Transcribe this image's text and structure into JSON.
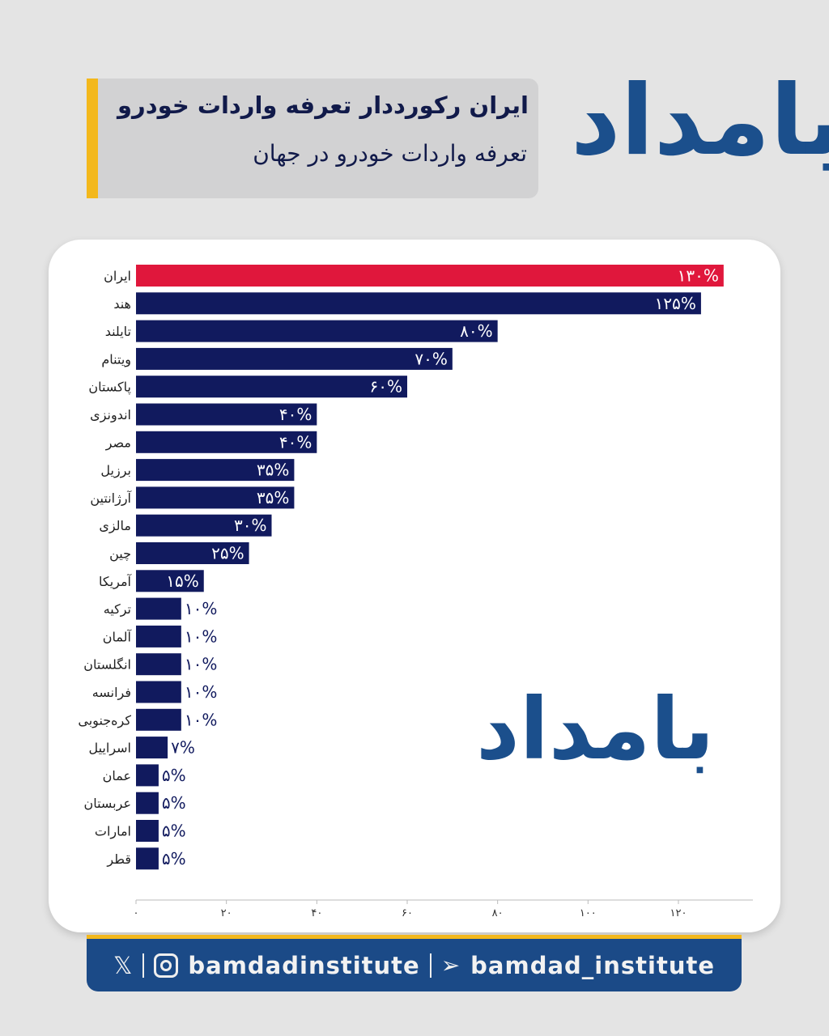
{
  "header": {
    "title": "ایران رکورددار تعرفه واردات خودرو",
    "subtitle": "تعرفه واردات خودرو در جهان"
  },
  "logo_text": "بامداد",
  "footer": {
    "handle_social": "bamdadinstitute",
    "handle_telegram": "bamdad_institute",
    "icons": [
      "x-icon",
      "instagram-icon",
      "telegram-icon"
    ]
  },
  "colors": {
    "highlight": "#e0173c",
    "bar": "#111a5e",
    "accent": "#f3b81c",
    "brand": "#1b4a87"
  },
  "chart_data": {
    "type": "bar",
    "orientation": "horizontal",
    "categories": [
      "ایران",
      "هند",
      "تایلند",
      "ویتنام",
      "پاکستان",
      "اندونزی",
      "مصر",
      "برزیل",
      "آرژانتین",
      "مالزی",
      "چین",
      "آمریکا",
      "ترکیه",
      "آلمان",
      "انگلستان",
      "فرانسه",
      "کره‌جنوبی",
      "اسراییل",
      "عمان",
      "عربستان",
      "امارات",
      "قطر"
    ],
    "values": [
      130,
      125,
      80,
      70,
      60,
      40,
      40,
      35,
      35,
      30,
      25,
      15,
      10,
      10,
      10,
      10,
      10,
      7,
      5,
      5,
      5,
      5
    ],
    "data_labels": [
      "۱۳۰%",
      "۱۲۵%",
      "۸۰%",
      "۷۰%",
      "۶۰%",
      "۴۰%",
      "۴۰%",
      "۳۵%",
      "۳۵%",
      "۳۰%",
      "۲۵%",
      "۱۵%",
      "۱۰%",
      "۱۰%",
      "۱۰%",
      "۱۰%",
      "۱۰%",
      "۷%",
      "۵%",
      "۵%",
      "۵%",
      "۵%"
    ],
    "xticks": [
      0,
      20,
      40,
      60,
      80,
      100,
      120
    ],
    "xtick_labels": [
      "۰",
      "۲۰",
      "۴۰",
      "۶۰",
      "۸۰",
      "۱۰۰",
      "۱۲۰"
    ],
    "xlim": [
      0,
      137
    ],
    "grid": false,
    "legend": "none",
    "highlight_index": 0
  }
}
